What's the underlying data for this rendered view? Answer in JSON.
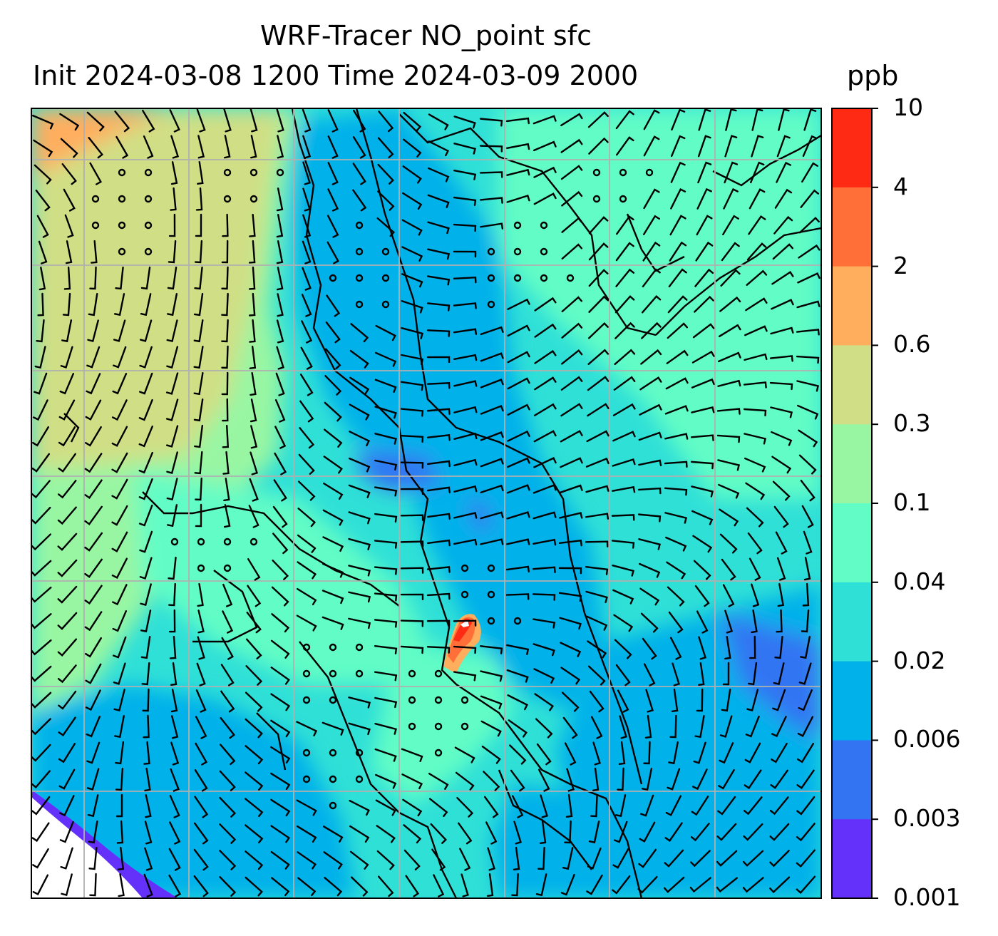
{
  "title": {
    "line1": "WRF-Tracer NO_point sfc",
    "line2": "Init 2024-03-08 1200 Time 2024-03-09 2000",
    "unit": "ppb"
  },
  "colorbar": {
    "levels": [
      "10",
      "4",
      "2",
      "0.6",
      "0.3",
      "0.1",
      "0.04",
      "0.02",
      "0.006",
      "0.003",
      "0.001"
    ],
    "colors_top_to_bottom": [
      "#ff2a14",
      "#ff6f37",
      "#ffae5e",
      "#d0df85",
      "#98f6a3",
      "#62fdc6",
      "#2fe0d7",
      "#00b1ea",
      "#3374f3",
      "#6431fb"
    ]
  },
  "map": {
    "field": "NO_point tracer concentration, surface",
    "wind_barbs": "plotted",
    "gridlines": "on",
    "coastlines": "on",
    "peak_concentration_band": "4–10 ppb"
  }
}
